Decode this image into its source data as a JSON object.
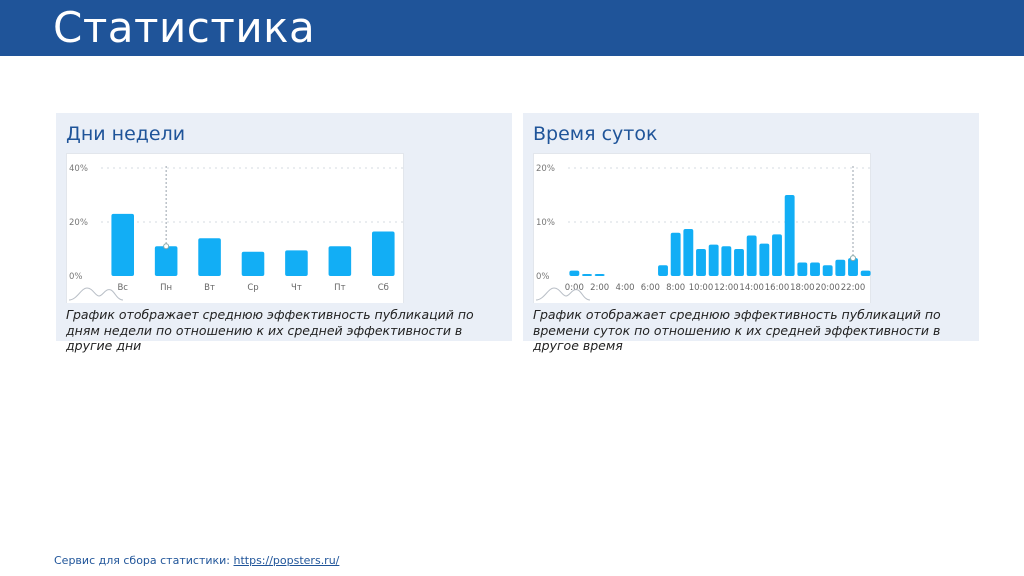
{
  "header": {
    "title": "Статистика"
  },
  "panels": [
    {
      "title": "Дни недели",
      "caption": "График отображает среднюю эффективность публикаций по дням недели по отношению к их средней эффективности в другие дни",
      "chart_data": {
        "type": "bar",
        "categories": [
          "Вс",
          "Пн",
          "Вт",
          "Ср",
          "Чт",
          "Пт",
          "Сб"
        ],
        "values": [
          23,
          11,
          14,
          9,
          9.5,
          11,
          16.5
        ],
        "ylim": [
          0,
          40
        ],
        "yticks": [
          "0%",
          "20%",
          "40%"
        ],
        "ytick_values": [
          0,
          20,
          40
        ],
        "highlight_index": 1,
        "bar_color": "#12aef5"
      }
    },
    {
      "title": "Время суток",
      "caption": "График отображает среднюю эффективность публикаций по времени суток по отношению к их средней эффективности в другое время",
      "chart_data": {
        "type": "bar",
        "categories": [
          "0:00",
          "1:00",
          "2:00",
          "3:00",
          "4:00",
          "5:00",
          "6:00",
          "7:00",
          "8:00",
          "9:00",
          "10:00",
          "11:00",
          "12:00",
          "13:00",
          "14:00",
          "15:00",
          "16:00",
          "17:00",
          "18:00",
          "19:00",
          "20:00",
          "21:00",
          "22:00",
          "23:00"
        ],
        "xtick_labels": [
          "0:00",
          "2:00",
          "4:00",
          "6:00",
          "8:00",
          "10:00",
          "12:00",
          "14:00",
          "16:00",
          "18:00",
          "20:00",
          "22:00"
        ],
        "values": [
          1,
          0.2,
          0.2,
          0,
          0,
          0,
          0,
          2,
          8,
          8.7,
          5,
          5.8,
          5.5,
          5,
          7.5,
          6,
          7.7,
          15,
          2.5,
          2.5,
          2,
          3,
          3.3,
          1
        ],
        "ylim": [
          0,
          20
        ],
        "yticks": [
          "0%",
          "10%",
          "20%"
        ],
        "ytick_values": [
          0,
          10,
          20
        ],
        "highlight_index": 22,
        "bar_color": "#12aef5"
      }
    }
  ],
  "footer": {
    "label": "Сервис для сбора статистики:",
    "link": "https://popsters.ru/"
  }
}
